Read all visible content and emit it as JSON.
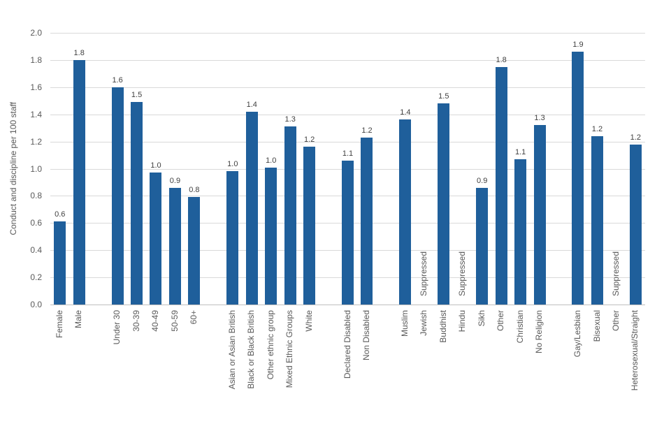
{
  "chart_data": {
    "type": "bar",
    "title": "",
    "xlabel": "",
    "ylabel": "Conduct and discipline per 100 staff",
    "ylim": [
      0.0,
      2.0
    ],
    "ytick_step": 0.2,
    "ytick_labels_top_to_bottom": [
      "2.0",
      "1.8",
      "1.6",
      "1.4",
      "1.2",
      "1.0",
      "0.8",
      "0.6",
      "0.4",
      "0.2",
      "0.0"
    ],
    "grid": true,
    "legend": false,
    "bar_color": "#1f5f9b",
    "suppressed_text": "Suppressed",
    "groups": [
      {
        "bars": [
          {
            "category": "Female",
            "value": 0.61,
            "label": "0.6"
          },
          {
            "category": "Male",
            "value": 1.8,
            "label": "1.8"
          }
        ]
      },
      {
        "bars": [
          {
            "category": "Under 30",
            "value": 1.6,
            "label": "1.6"
          },
          {
            "category": "30-39",
            "value": 1.49,
            "label": "1.5"
          },
          {
            "category": "40-49",
            "value": 0.97,
            "label": "1.0"
          },
          {
            "category": "50-59",
            "value": 0.86,
            "label": "0.9"
          },
          {
            "category": "60+",
            "value": 0.79,
            "label": "0.8"
          }
        ]
      },
      {
        "bars": [
          {
            "category": "Asian or Asian British",
            "value": 0.98,
            "label": "1.0"
          },
          {
            "category": "Black or Black British",
            "value": 1.42,
            "label": "1.4"
          },
          {
            "category": "Other ethnic group",
            "value": 1.01,
            "label": "1.0"
          },
          {
            "category": "Mixed Ethnic Groups",
            "value": 1.31,
            "label": "1.3"
          },
          {
            "category": "White",
            "value": 1.16,
            "label": "1.2"
          }
        ]
      },
      {
        "bars": [
          {
            "category": "Declared Disabled",
            "value": 1.06,
            "label": "1.1"
          },
          {
            "category": "Non Disabled",
            "value": 1.23,
            "label": "1.2"
          }
        ]
      },
      {
        "bars": [
          {
            "category": "Muslim",
            "value": 1.36,
            "label": "1.4"
          },
          {
            "category": "Jewish",
            "value": null,
            "suppressed": true
          },
          {
            "category": "Buddhist",
            "value": 1.48,
            "label": "1.5"
          },
          {
            "category": "Hindu",
            "value": null,
            "suppressed": true
          },
          {
            "category": "Sikh",
            "value": 0.86,
            "label": "0.9"
          },
          {
            "category": "Other",
            "value": 1.75,
            "label": "1.8"
          },
          {
            "category": "Christian",
            "value": 1.07,
            "label": "1.1"
          },
          {
            "category": "No Religion",
            "value": 1.32,
            "label": "1.3"
          }
        ]
      },
      {
        "bars": [
          {
            "category": "Gay/Lesbian",
            "value": 1.86,
            "label": "1.9"
          },
          {
            "category": "Bisexual",
            "value": 1.24,
            "label": "1.2"
          },
          {
            "category": "Other",
            "value": null,
            "suppressed": true
          },
          {
            "category": "Heterosexual/Straight",
            "value": 1.18,
            "label": "1.2"
          }
        ]
      }
    ]
  }
}
